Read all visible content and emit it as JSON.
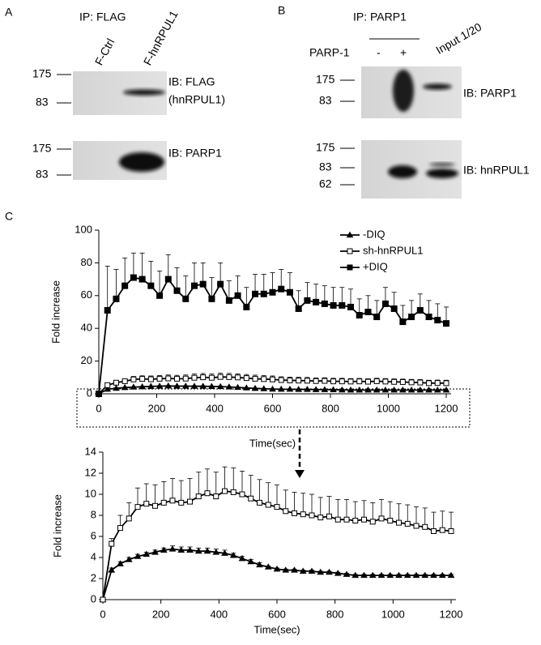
{
  "panels": {
    "a": {
      "label": "A",
      "ip": "IP: FLAG",
      "lanes": [
        "F-Ctrl",
        "F-hnRPUL1"
      ],
      "blots": [
        {
          "markers": [
            "175",
            "83"
          ],
          "ib": [
            "IB: FLAG",
            "(hnRPUL1)"
          ]
        },
        {
          "markers": [
            "175",
            "83"
          ],
          "ib": [
            "IB: PARP1"
          ]
        }
      ]
    },
    "b": {
      "label": "B",
      "ip": "IP: PARP1",
      "row_label": "PARP-1",
      "lanes": [
        "-",
        "+",
        "Input 1/20"
      ],
      "blots": [
        {
          "markers": [
            "175",
            "83"
          ],
          "ib": [
            "IB: PARP1"
          ]
        },
        {
          "markers": [
            "175",
            "83",
            "62"
          ],
          "ib": [
            "IB: hnRPUL1"
          ]
        }
      ]
    },
    "c": {
      "label": "C"
    }
  },
  "chart_data": [
    {
      "type": "line",
      "xlabel": "Time(sec)",
      "ylabel": "Fold increase",
      "legend": "upper right",
      "x": [
        0,
        30,
        60,
        90,
        120,
        150,
        180,
        210,
        240,
        270,
        300,
        330,
        360,
        390,
        420,
        450,
        480,
        510,
        540,
        570,
        600,
        630,
        660,
        690,
        720,
        750,
        780,
        810,
        840,
        870,
        900,
        930,
        960,
        990,
        1020,
        1050,
        1080,
        1110,
        1140,
        1170,
        1200
      ],
      "xlim": [
        0,
        1200
      ],
      "xticks": [
        0,
        200,
        400,
        600,
        800,
        1000,
        1200
      ],
      "ylim": [
        0,
        100
      ],
      "yticks": [
        0,
        20,
        40,
        60,
        80,
        100
      ],
      "series": [
        {
          "name": "-DIQ",
          "color": "#000000",
          "marker": "triangle",
          "filled": true,
          "values": [
            0,
            2.8,
            3.4,
            3.8,
            4.1,
            4.3,
            4.5,
            4.7,
            4.8,
            4.7,
            4.7,
            4.6,
            4.6,
            4.5,
            4.4,
            4.2,
            3.9,
            3.6,
            3.3,
            3.1,
            2.9,
            2.8,
            2.8,
            2.7,
            2.7,
            2.6,
            2.6,
            2.5,
            2.4,
            2.3,
            2.3,
            2.3,
            2.3,
            2.3,
            2.3,
            2.3,
            2.3,
            2.3,
            2.3,
            2.3,
            2.3
          ],
          "errors": [
            0,
            0.2,
            0.2,
            0.2,
            0.2,
            0.2,
            0.2,
            0.2,
            0.3,
            0.3,
            0.3,
            0.3,
            0.3,
            0.3,
            0.3,
            0.2,
            0.2,
            0.2,
            0.2,
            0.1,
            0.1,
            0.1,
            0.1,
            0.1,
            0.1,
            0.1,
            0.1,
            0.1,
            0.1,
            0.1,
            0.1,
            0.1,
            0.1,
            0.1,
            0.1,
            0.1,
            0.1,
            0.1,
            0.1,
            0.1,
            0.1
          ]
        },
        {
          "name": "sh-hnRPUL1",
          "color": "#000000",
          "marker": "square",
          "filled": false,
          "values": [
            0,
            5.3,
            6.8,
            7.7,
            8.8,
            9.1,
            8.9,
            9.2,
            9.4,
            9.2,
            9.3,
            9.8,
            10.1,
            9.8,
            10.3,
            10.2,
            10.0,
            9.6,
            9.2,
            9.0,
            8.8,
            8.4,
            8.2,
            8.1,
            8.0,
            7.8,
            7.9,
            7.6,
            7.6,
            7.5,
            7.6,
            7.4,
            7.7,
            7.5,
            7.3,
            7.2,
            7.0,
            6.9,
            6.5,
            6.6,
            6.5
          ],
          "errors": [
            0,
            0.5,
            1.2,
            1.5,
            1.8,
            1.9,
            2.0,
            2.0,
            2.1,
            2.1,
            2.2,
            2.3,
            2.3,
            2.3,
            2.3,
            2.3,
            2.2,
            2.2,
            2.2,
            2.1,
            2.1,
            2.0,
            2.0,
            2.0,
            2.0,
            1.9,
            1.9,
            1.9,
            1.9,
            1.8,
            1.8,
            1.8,
            1.8,
            1.8,
            1.8,
            1.8,
            1.8,
            1.8,
            1.8,
            1.8,
            1.8
          ]
        },
        {
          "name": "+DIQ",
          "color": "#000000",
          "marker": "square",
          "filled": true,
          "values": [
            0,
            51,
            58,
            66,
            71,
            70,
            66,
            60,
            70,
            63,
            58,
            66,
            67,
            58,
            67,
            57,
            60,
            53,
            61,
            61,
            62,
            64,
            62,
            52,
            57,
            56,
            55,
            54,
            54,
            53,
            48,
            50,
            47,
            55,
            52,
            44,
            47,
            51,
            47,
            45,
            43
          ],
          "errors": [
            0,
            27,
            18,
            17,
            15,
            16,
            15,
            15,
            15,
            14,
            14,
            14,
            13,
            13,
            13,
            12,
            12,
            12,
            12,
            12,
            12,
            12,
            12,
            11,
            11,
            11,
            11,
            11,
            11,
            11,
            10,
            10,
            10,
            10,
            10,
            10,
            10,
            10,
            10,
            10,
            10
          ]
        }
      ]
    },
    {
      "type": "line",
      "xlabel": "Time(sec)",
      "ylabel": "Fold increase",
      "x": [
        0,
        30,
        60,
        90,
        120,
        150,
        180,
        210,
        240,
        270,
        300,
        330,
        360,
        390,
        420,
        450,
        480,
        510,
        540,
        570,
        600,
        630,
        660,
        690,
        720,
        750,
        780,
        810,
        840,
        870,
        900,
        930,
        960,
        990,
        1020,
        1050,
        1080,
        1110,
        1140,
        1170,
        1200
      ],
      "xlim": [
        0,
        1200
      ],
      "xticks": [
        0,
        200,
        400,
        600,
        800,
        1000,
        1200
      ],
      "ylim": [
        0,
        14
      ],
      "yticks": [
        0,
        2,
        4,
        6,
        8,
        10,
        12,
        14
      ],
      "series": [
        {
          "color": "#000000",
          "marker": "triangle",
          "filled": true,
          "values": [
            0,
            2.8,
            3.4,
            3.8,
            4.1,
            4.3,
            4.5,
            4.7,
            4.8,
            4.7,
            4.7,
            4.6,
            4.6,
            4.5,
            4.4,
            4.2,
            3.9,
            3.6,
            3.3,
            3.1,
            2.9,
            2.8,
            2.8,
            2.7,
            2.7,
            2.6,
            2.6,
            2.5,
            2.4,
            2.3,
            2.3,
            2.3,
            2.3,
            2.3,
            2.3,
            2.3,
            2.3,
            2.3,
            2.3,
            2.3,
            2.3
          ],
          "errors": [
            0,
            0.2,
            0.2,
            0.2,
            0.2,
            0.2,
            0.2,
            0.2,
            0.3,
            0.3,
            0.3,
            0.3,
            0.3,
            0.3,
            0.3,
            0.2,
            0.2,
            0.2,
            0.2,
            0.1,
            0.1,
            0.1,
            0.1,
            0.1,
            0.1,
            0.1,
            0.1,
            0.1,
            0.1,
            0.1,
            0.1,
            0.1,
            0.1,
            0.1,
            0.1,
            0.1,
            0.1,
            0.1,
            0.1,
            0.1,
            0.1
          ]
        },
        {
          "color": "#000000",
          "marker": "square",
          "filled": false,
          "values": [
            0,
            5.3,
            6.8,
            7.7,
            8.8,
            9.1,
            8.9,
            9.2,
            9.4,
            9.2,
            9.3,
            9.8,
            10.1,
            9.8,
            10.3,
            10.2,
            10.0,
            9.6,
            9.2,
            9.0,
            8.8,
            8.4,
            8.2,
            8.1,
            8.0,
            7.8,
            7.9,
            7.6,
            7.6,
            7.5,
            7.6,
            7.4,
            7.7,
            7.5,
            7.3,
            7.2,
            7.0,
            6.9,
            6.5,
            6.6,
            6.5
          ],
          "errors": [
            0,
            0.5,
            1.2,
            1.5,
            1.8,
            1.9,
            2.0,
            2.0,
            2.1,
            2.1,
            2.2,
            2.3,
            2.3,
            2.3,
            2.3,
            2.3,
            2.2,
            2.2,
            2.2,
            2.1,
            2.1,
            2.0,
            2.0,
            2.0,
            2.0,
            1.9,
            1.9,
            1.9,
            1.9,
            1.8,
            1.8,
            1.8,
            1.8,
            1.8,
            1.8,
            1.8,
            1.8,
            1.8,
            1.8,
            1.8,
            1.8
          ]
        }
      ]
    }
  ]
}
